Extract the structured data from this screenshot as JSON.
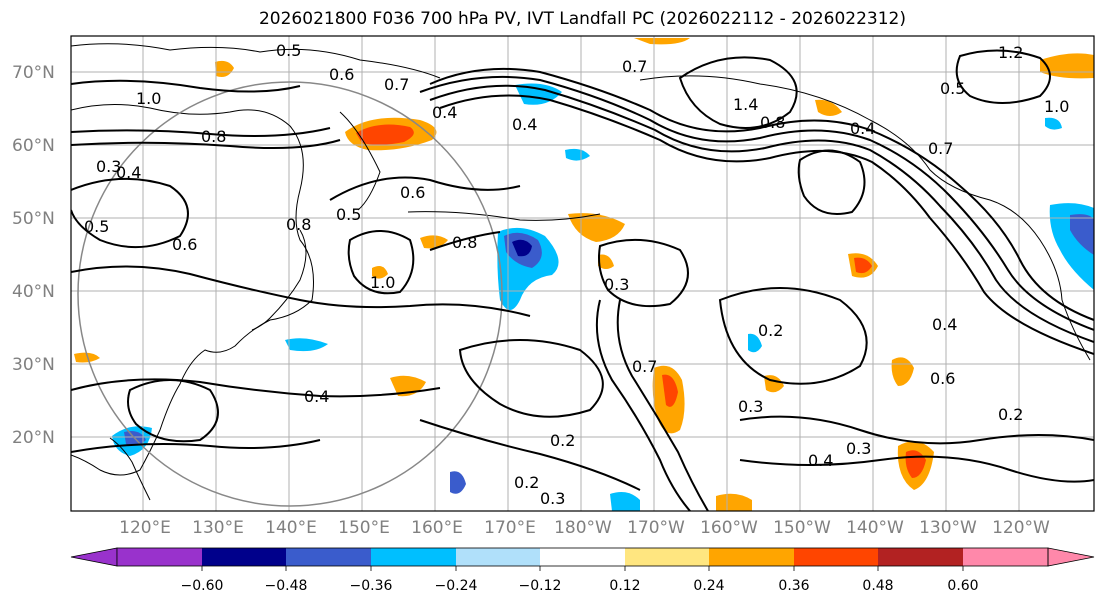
{
  "title": "2026021800 F036 700 hPa PV, IVT Landfall PC (2026022112 - 2026022312)",
  "map": {
    "lat_ticks": [
      "70°N",
      "60°N",
      "50°N",
      "40°N",
      "30°N",
      "20°N"
    ],
    "lon_ticks": [
      "120°E",
      "130°E",
      "140°E",
      "150°E",
      "160°E",
      "170°E",
      "180°W",
      "170°W",
      "160°W",
      "150°W",
      "140°W",
      "130°W",
      "120°W"
    ],
    "contour_labels": [
      "0.5",
      "0.6",
      "0.7",
      "1.0",
      "0.8",
      "0.3",
      "0.4",
      "0.5",
      "0.6",
      "1.0",
      "0.4",
      "0.7",
      "0.4",
      "1.4",
      "0.8",
      "0.5",
      "1.2",
      "1.0",
      "0.8",
      "0.7",
      "0.6",
      "0.5",
      "0.8",
      "0.4",
      "0.3",
      "0.4",
      "0.7",
      "0.2",
      "0.4",
      "0.6",
      "0.2",
      "0.3",
      "0.4",
      "0.2",
      "0.3",
      "0.2",
      "0.3"
    ],
    "colors": {
      "neg_060": "#9932cc",
      "neg_048": "#00008b",
      "neg_036": "#3a5ccc",
      "neg_024": "#00bfff",
      "neg_012": "#b0e0fa",
      "neutral": "#ffffff",
      "pos_012": "#ffe680",
      "pos_024": "#ffa500",
      "pos_036": "#ff4500",
      "pos_048": "#b22222",
      "pos_060": "#ff88aa"
    }
  },
  "colorbar": {
    "ticks": [
      "−0.60",
      "−0.48",
      "−0.36",
      "−0.24",
      "−0.12",
      "0.12",
      "0.24",
      "0.36",
      "0.48",
      "0.60"
    ]
  }
}
